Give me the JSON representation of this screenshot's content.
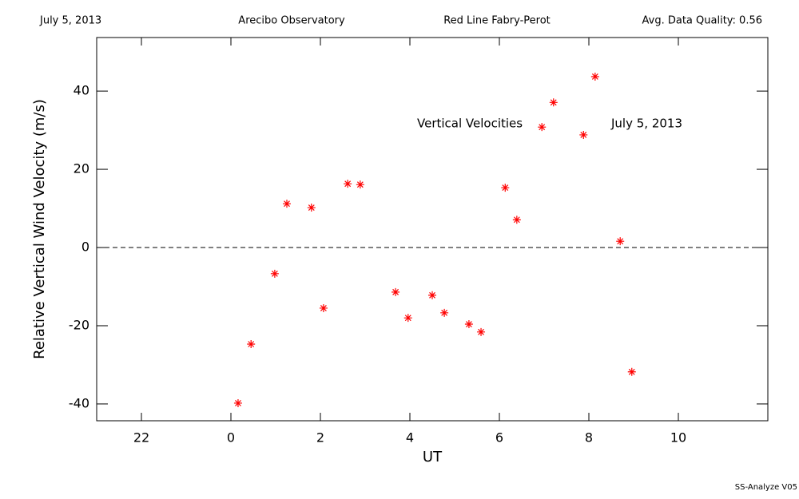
{
  "chart_data": {
    "type": "scatter",
    "header": [
      "July 5, 2013",
      "Arecibo Observatory",
      "Red Line Fabry-Perot",
      "Avg. Data Quality: 0.56"
    ],
    "annotations": [
      "Vertical Velocities",
      "July 5, 2013"
    ],
    "xlabel": "UT",
    "ylabel": "Relative Vertical Wind Velocity (m/s)",
    "footer": "SS-Analyze V05",
    "x": [
      24.16,
      24.45,
      24.98,
      25.25,
      25.8,
      26.07,
      26.61,
      26.89,
      27.68,
      27.96,
      28.5,
      28.77,
      29.32,
      29.59,
      30.13,
      30.39,
      30.95,
      31.21,
      31.88,
      32.14,
      32.7,
      32.96
    ],
    "series": [
      {
        "color": "#ff0000",
        "values": [
          -39.8,
          -24.7,
          -6.7,
          11.2,
          10.2,
          -15.5,
          16.3,
          16.1,
          -11.4,
          -18.0,
          -12.2,
          -16.7,
          -19.6,
          -21.6,
          15.3,
          7.1,
          30.8,
          37.1,
          28.8,
          43.7,
          1.6,
          -31.8
        ]
      }
    ],
    "xlim": [
      21,
      36
    ],
    "ylim": [
      -44.3,
      53.7
    ],
    "xticks": [
      22,
      {
        "value": 24,
        "label": "0"
      },
      {
        "value": 26,
        "label": "2"
      },
      {
        "value": 28,
        "label": "4"
      },
      {
        "value": 30,
        "label": "6"
      },
      {
        "value": 32,
        "label": "8"
      },
      {
        "value": 34,
        "label": "10"
      }
    ],
    "yticks": [
      -40,
      -20,
      0,
      20,
      40
    ],
    "hline": 0
  }
}
